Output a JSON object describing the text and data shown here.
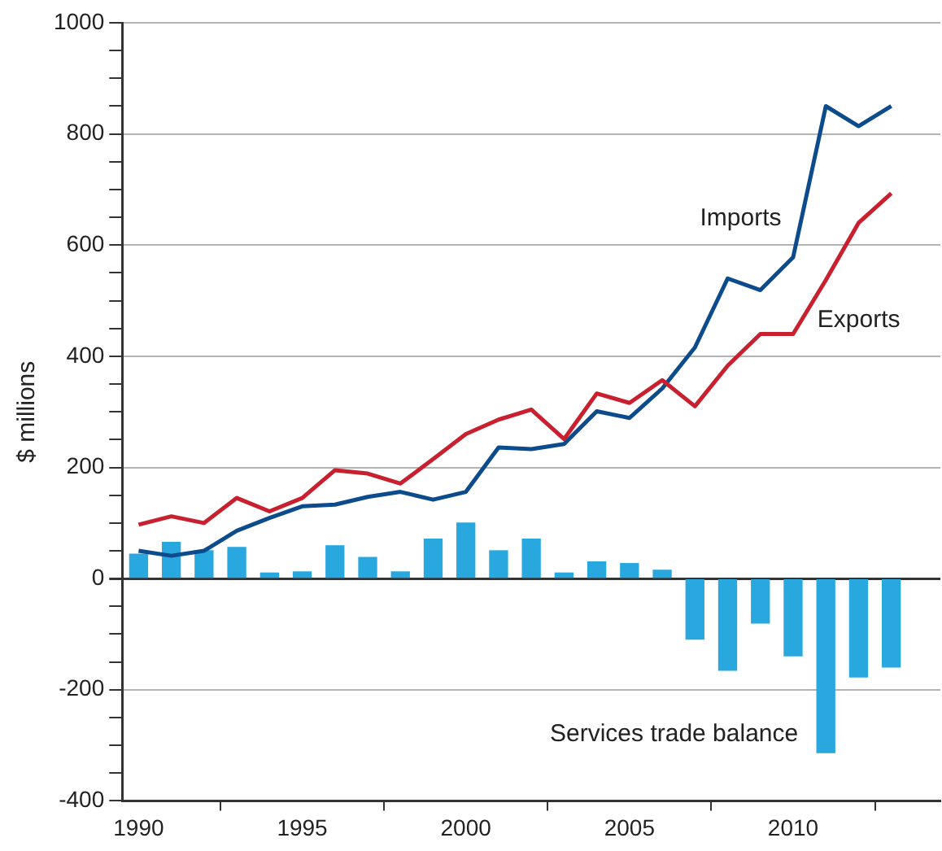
{
  "chart_data": {
    "type": "line",
    "ylabel": "$ millions",
    "x": [
      1990,
      1991,
      1992,
      1993,
      1994,
      1995,
      1996,
      1997,
      1998,
      1999,
      2000,
      2001,
      2002,
      2003,
      2004,
      2005,
      2006,
      2007,
      2008,
      2009,
      2010,
      2011,
      2012,
      2013
    ],
    "series": [
      {
        "name": "Services trade balance",
        "type": "bar",
        "color": "#29a8e0",
        "values": [
          44,
          65,
          50,
          56,
          10,
          12,
          59,
          38,
          12,
          71,
          100,
          50,
          71,
          10,
          30,
          27,
          15,
          -109,
          -165,
          -80,
          -139,
          -313,
          -177,
          -159
        ]
      },
      {
        "name": "Exports",
        "color": "#c8202f",
        "values": [
          97,
          112,
          100,
          145,
          121,
          145,
          195,
          189,
          171,
          215,
          260,
          286,
          304,
          251,
          333,
          316,
          357,
          310,
          383,
          440,
          440,
          537,
          640,
          693
        ]
      },
      {
        "name": "Imports",
        "color": "#0d4c8c",
        "values": [
          50,
          41,
          50,
          86,
          109,
          130,
          133,
          147,
          156,
          142,
          156,
          236,
          233,
          242,
          301,
          289,
          342,
          416,
          540,
          519,
          578,
          850,
          814,
          850
        ]
      }
    ],
    "xlim": [
      1989.5,
      2014.5
    ],
    "xticks": [
      1990,
      1995,
      2000,
      2005,
      2010
    ],
    "ylim": [
      -400,
      1000
    ],
    "yticks": [
      -400,
      {
        "value": -350,
        "label": null
      },
      {
        "value": -300,
        "label": null
      },
      {
        "value": -250,
        "label": null
      },
      -200,
      {
        "value": -150,
        "label": null
      },
      {
        "value": -100,
        "label": null
      },
      {
        "value": -50,
        "label": null
      },
      0,
      {
        "value": 50,
        "label": null
      },
      {
        "value": 100,
        "label": null
      },
      {
        "value": 150,
        "label": null
      },
      200,
      {
        "value": 250,
        "label": null
      },
      {
        "value": 300,
        "label": null
      },
      {
        "value": 350,
        "label": null
      },
      400,
      {
        "value": 450,
        "label": null
      },
      {
        "value": 500,
        "label": null
      },
      {
        "value": 550,
        "label": null
      },
      600,
      {
        "value": 650,
        "label": null
      },
      {
        "value": 700,
        "label": null
      },
      {
        "value": 750,
        "label": null
      },
      800,
      {
        "value": 850,
        "label": null
      },
      {
        "value": 900,
        "label": null
      },
      {
        "value": 950,
        "label": null
      },
      1000
    ],
    "grid": "y",
    "legend": false,
    "marker": "none",
    "line_style": "solid"
  }
}
